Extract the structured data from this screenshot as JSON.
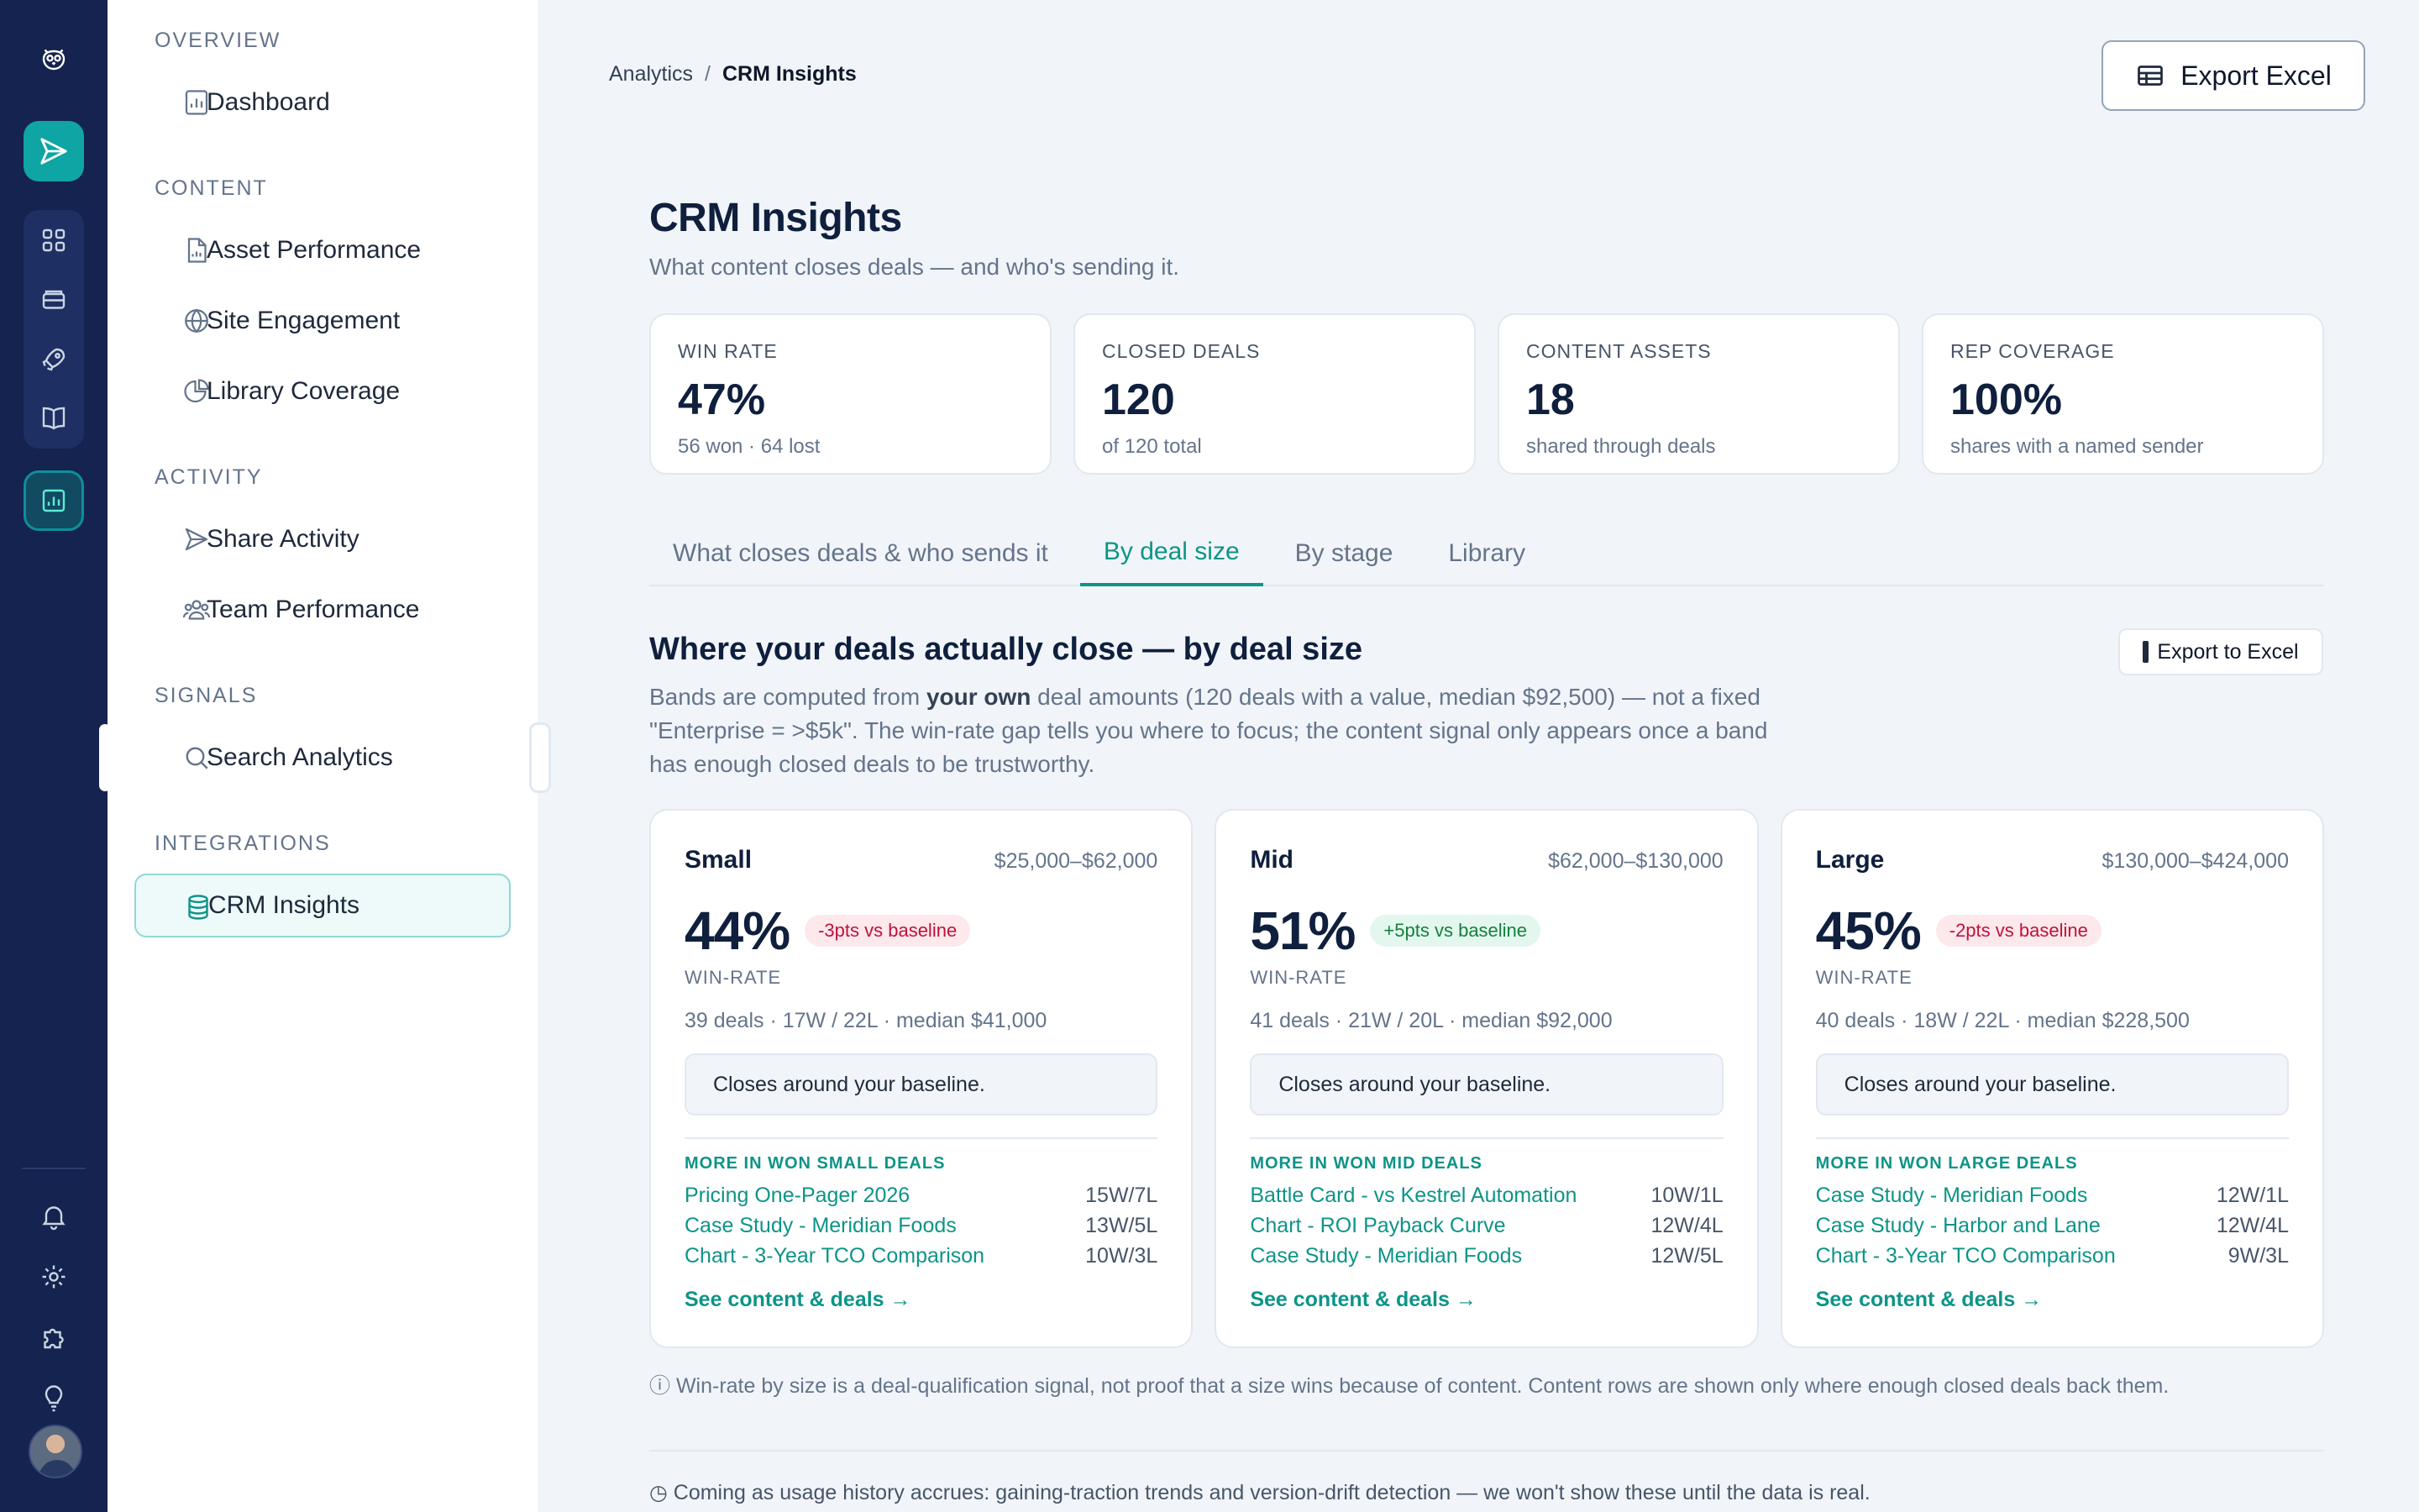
{
  "rail": {
    "icons": [
      "owl-logo-icon",
      "send-icon",
      "grid-icon",
      "inbox-icon",
      "rocket-icon",
      "book-icon",
      "analytics-icon",
      "bell-icon",
      "gear-icon",
      "puzzle-icon",
      "lightbulb-icon"
    ]
  },
  "nav": {
    "sections": [
      {
        "label": "OVERVIEW",
        "items": [
          {
            "label": "Dashboard",
            "icon": "chart-doc-icon"
          }
        ]
      },
      {
        "label": "CONTENT",
        "items": [
          {
            "label": "Asset Performance",
            "icon": "document-icon"
          },
          {
            "label": "Site Engagement",
            "icon": "globe-icon"
          },
          {
            "label": "Library Coverage",
            "icon": "pie-icon"
          }
        ]
      },
      {
        "label": "ACTIVITY",
        "items": [
          {
            "label": "Share Activity",
            "icon": "send-icon"
          },
          {
            "label": "Team Performance",
            "icon": "team-icon"
          }
        ]
      },
      {
        "label": "SIGNALS",
        "items": [
          {
            "label": "Search Analytics",
            "icon": "search-icon"
          }
        ]
      },
      {
        "label": "INTEGRATIONS",
        "items": [
          {
            "label": "CRM Insights",
            "icon": "database-icon",
            "selected": true
          }
        ]
      }
    ]
  },
  "breadcrumb": {
    "parent": "Analytics",
    "sep": "/",
    "current": "CRM Insights"
  },
  "export_top_label": "Export Excel",
  "page": {
    "title": "CRM Insights",
    "subtitle": "What content closes deals — and who's sending it."
  },
  "kpis": [
    {
      "label": "WIN RATE",
      "value": "47%",
      "sub": "56 won · 64 lost"
    },
    {
      "label": "CLOSED DEALS",
      "value": "120",
      "sub": "of 120 total"
    },
    {
      "label": "CONTENT ASSETS",
      "value": "18",
      "sub": "shared through deals"
    },
    {
      "label": "REP COVERAGE",
      "value": "100%",
      "sub": "shares with a named sender"
    }
  ],
  "tabs": [
    {
      "label": "What closes deals & who sends it",
      "active": false
    },
    {
      "label": "By deal size",
      "active": true
    },
    {
      "label": "By stage",
      "active": false
    },
    {
      "label": "Library",
      "active": false
    }
  ],
  "section": {
    "title": "Where your deals actually close — by deal size",
    "desc_1": "Bands are computed from ",
    "desc_bold": "your own",
    "desc_2": " deal amounts (120 deals with a value, median $92,500) — not a fixed \"Enterprise = >$5k\". The win-rate gap tells you where to focus; the content signal only appears once a band has enough closed deals to be trustworthy.",
    "export_label": "Export to Excel"
  },
  "bands": [
    {
      "name": "Small",
      "range": "$25,000–$62,000",
      "rate": "44%",
      "badge": "-3pts vs baseline",
      "badge_type": "neg",
      "rate_label": "WIN-RATE",
      "stats": "39 deals · 17W / 22L · median $41,000",
      "note": "Closes around your baseline.",
      "more_label": "MORE IN WON SMALL DEALS",
      "assets": [
        {
          "name": "Pricing One-Pager 2026",
          "score": "15W/7L"
        },
        {
          "name": "Case Study - Meridian Foods",
          "score": "13W/5L"
        },
        {
          "name": "Chart - 3-Year TCO Comparison",
          "score": "10W/3L"
        }
      ],
      "link": "See content & deals →"
    },
    {
      "name": "Mid",
      "range": "$62,000–$130,000",
      "rate": "51%",
      "badge": "+5pts vs baseline",
      "badge_type": "pos",
      "rate_label": "WIN-RATE",
      "stats": "41 deals · 21W / 20L · median $92,000",
      "note": "Closes around your baseline.",
      "more_label": "MORE IN WON MID DEALS",
      "assets": [
        {
          "name": "Battle Card - vs Kestrel Automation",
          "score": "10W/1L"
        },
        {
          "name": "Chart - ROI Payback Curve",
          "score": "12W/4L"
        },
        {
          "name": "Case Study - Meridian Foods",
          "score": "12W/5L"
        }
      ],
      "link": "See content & deals →"
    },
    {
      "name": "Large",
      "range": "$130,000–$424,000",
      "rate": "45%",
      "badge": "-2pts vs baseline",
      "badge_type": "neg",
      "rate_label": "WIN-RATE",
      "stats": "40 deals · 18W / 22L · median $228,500",
      "note": "Closes around your baseline.",
      "more_label": "MORE IN WON LARGE DEALS",
      "assets": [
        {
          "name": "Case Study - Meridian Foods",
          "score": "12W/1L"
        },
        {
          "name": "Case Study - Harbor and Lane",
          "score": "12W/4L"
        },
        {
          "name": "Chart - 3-Year TCO Comparison",
          "score": "9W/3L"
        }
      ],
      "link": "See content & deals →"
    }
  ],
  "footnote": "ⓘ  Win-rate by size is a deal-qualification signal, not proof that a size wins because of content. Content rows are shown only where enough closed deals back them.",
  "coming": "◷ Coming as usage history accrues: gaining-traction trends and version-drift detection — we won't show these until the data is real."
}
